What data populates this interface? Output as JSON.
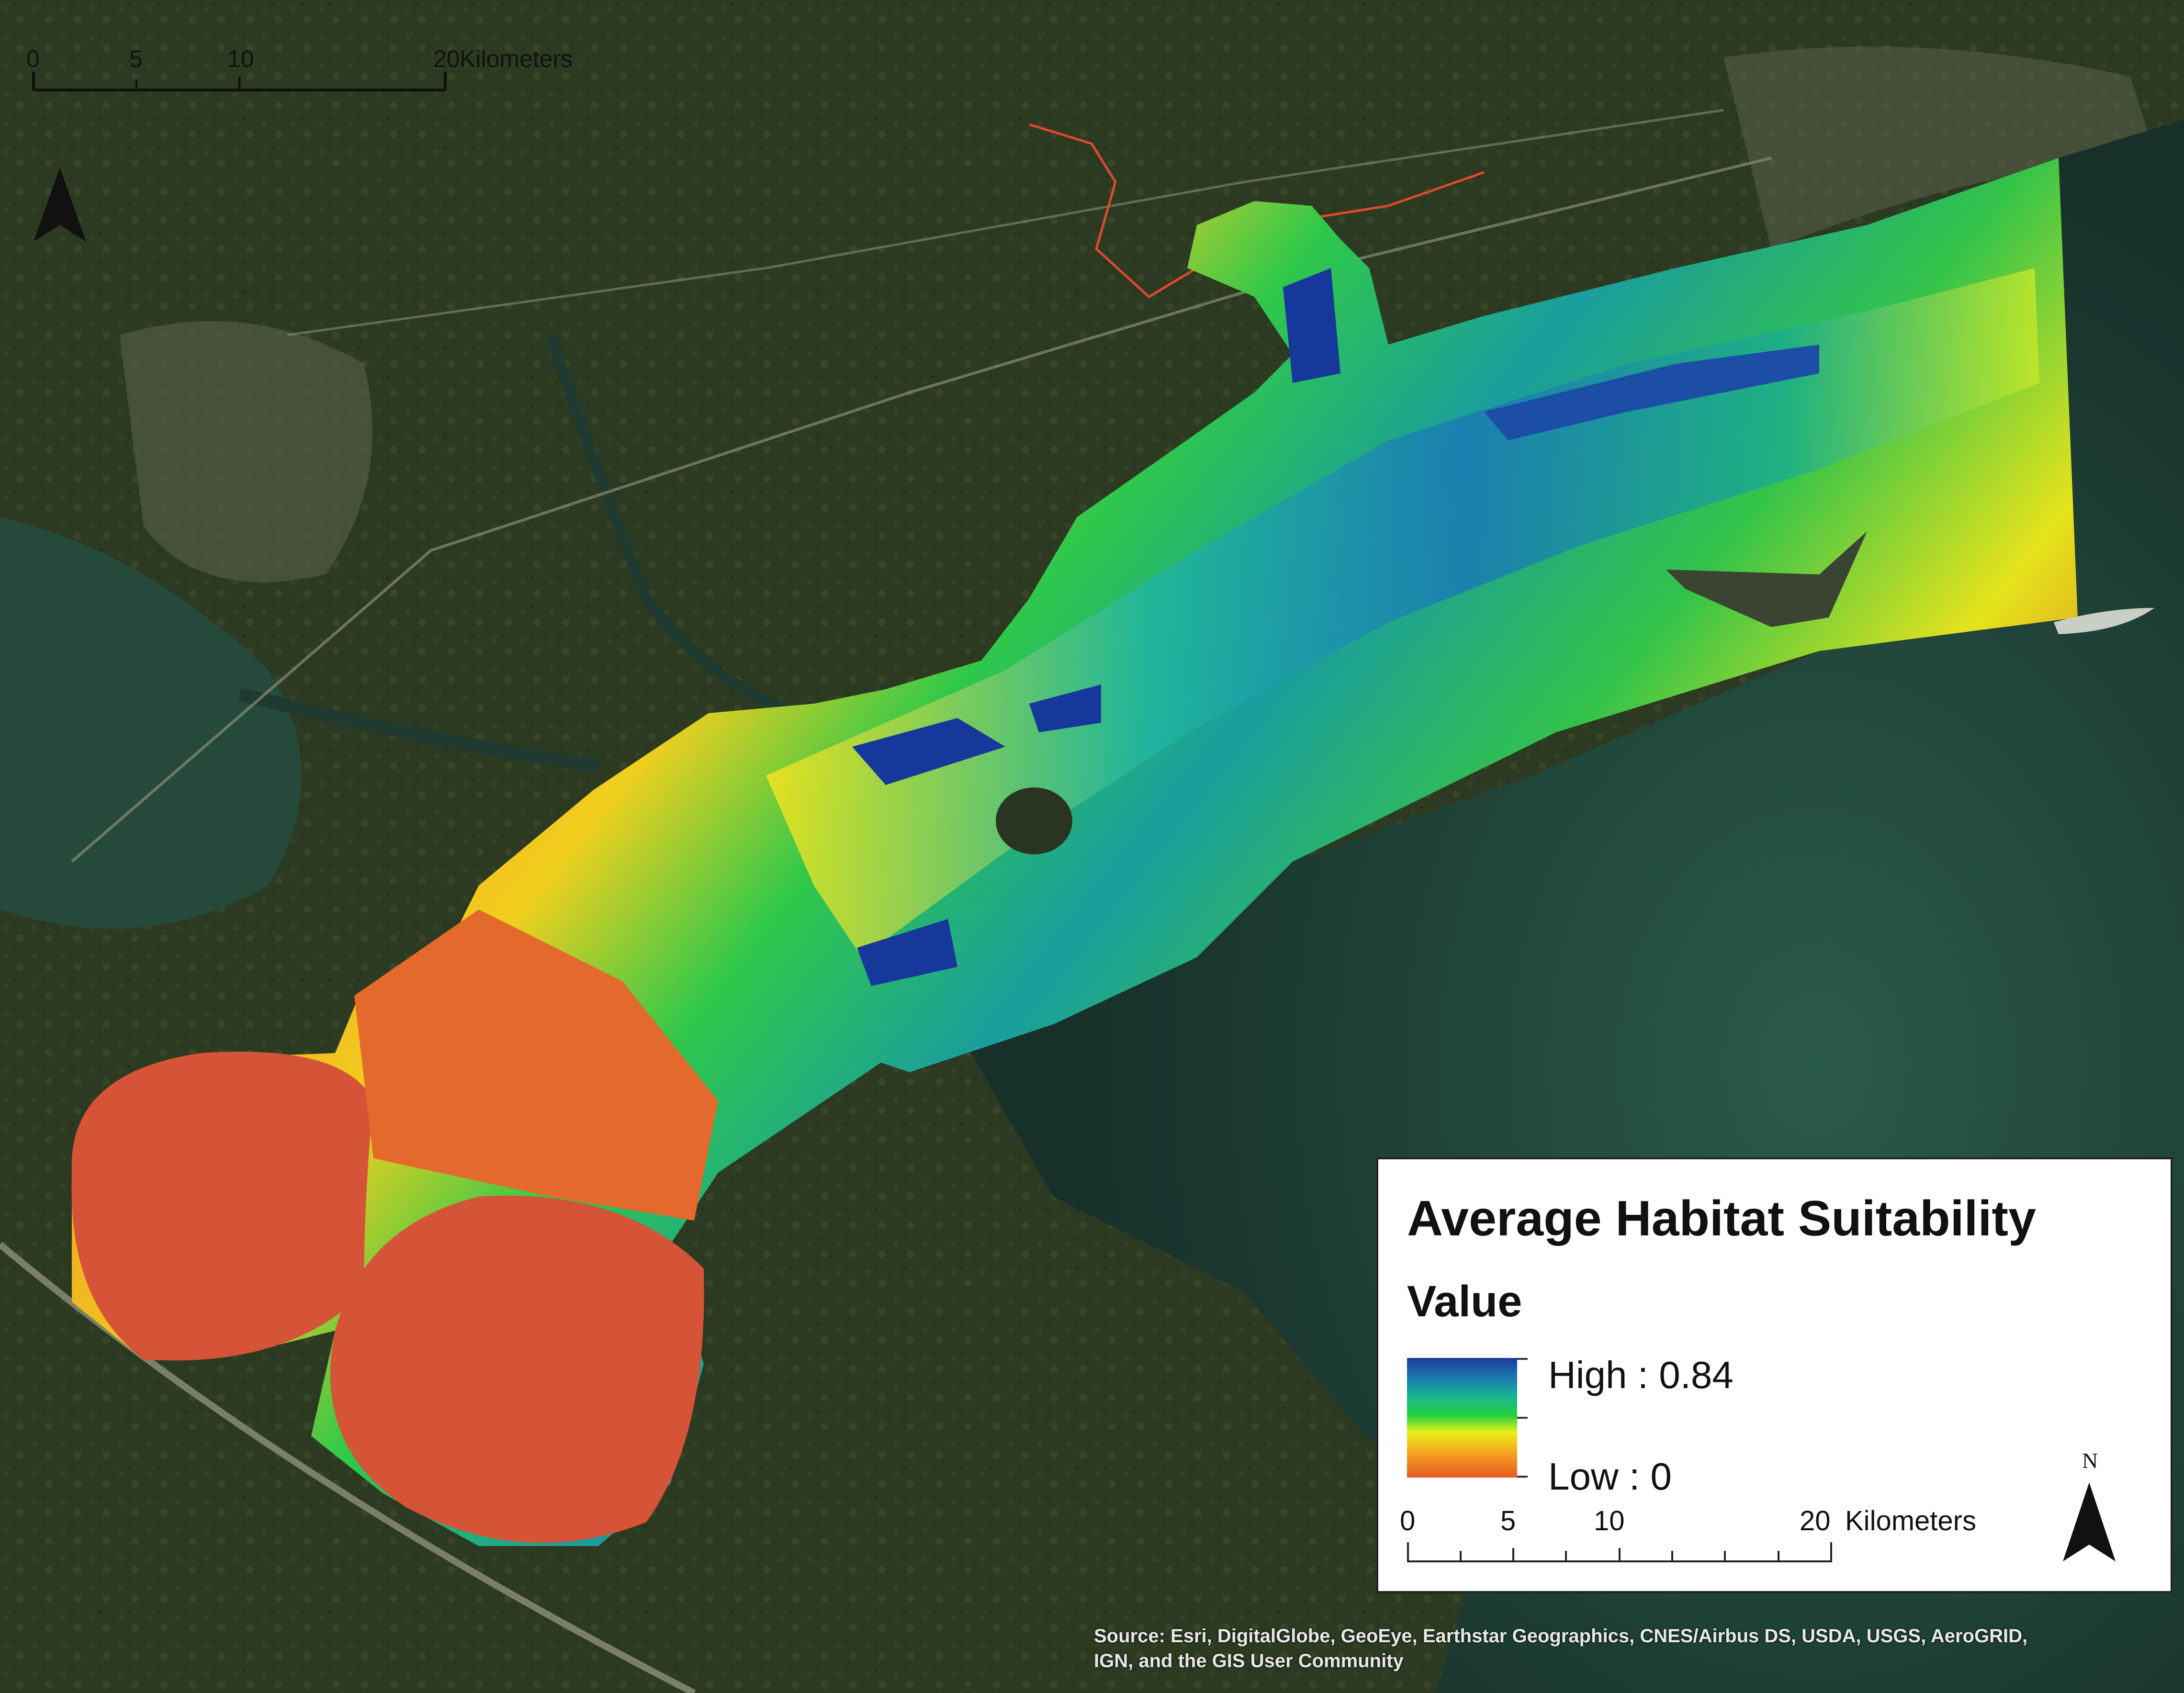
{
  "map": {
    "basemap": "satellite-imagery",
    "colors": {
      "high": "#1c3a9c",
      "mid_high": "#19b68e",
      "mid": "#25d140",
      "mid_low": "#e9f01a",
      "low": "#e45a24",
      "water": "#1d3d33",
      "land": "#2e3a22"
    }
  },
  "legend": {
    "title": "Average Habitat Suitability",
    "field": "Value",
    "high_label": "High : 0.84",
    "low_label": "Low : 0",
    "scale_labels": [
      "0",
      "5",
      "10",
      "20"
    ],
    "scale_unit": "Kilometers",
    "north_label": "N"
  },
  "top_scale": {
    "labels": [
      "0",
      "5",
      "10",
      "20"
    ],
    "unit": "Kilometers"
  },
  "attribution": {
    "line1": "Source: Esri, DigitalGlobe, GeoEye, Earthstar Geographics, CNES/Airbus DS, USDA, USGS, AeroGRID,",
    "line2": "IGN, and the GIS User Community"
  }
}
